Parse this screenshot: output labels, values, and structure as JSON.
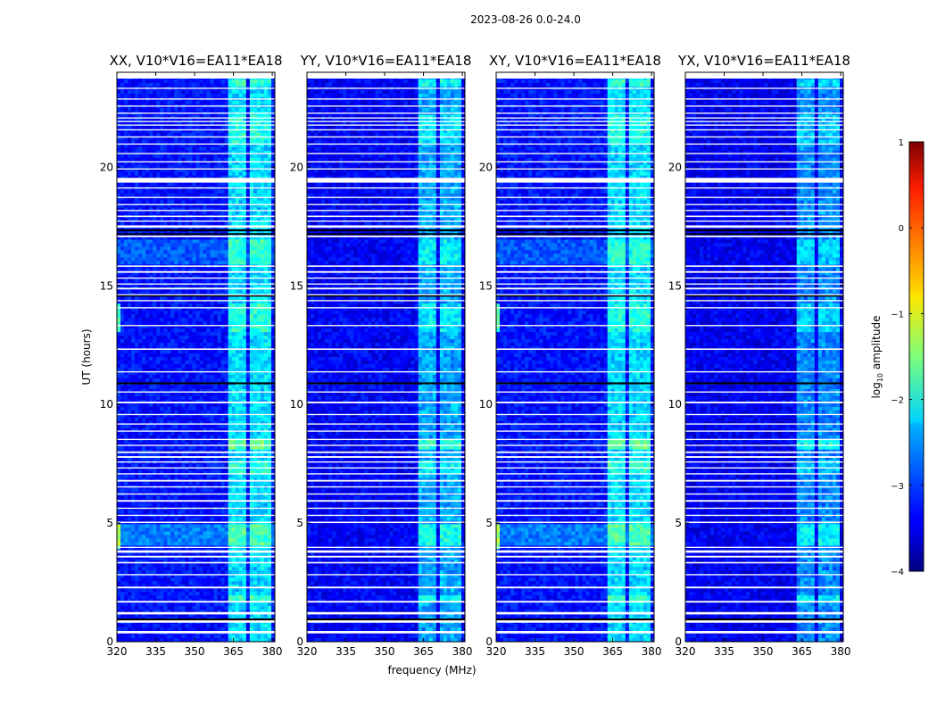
{
  "chart_data": {
    "type": "heatmap",
    "suptitle": "2023-08-26 0.0-24.0",
    "xlabel": "frequency (MHz)",
    "ylabel": "UT (hours)",
    "xlim": [
      320,
      381
    ],
    "ylim": [
      0,
      24
    ],
    "x_ticks": [
      320,
      335,
      350,
      365,
      380
    ],
    "y_ticks": [
      0,
      5,
      10,
      15,
      20
    ],
    "colorbar": {
      "label": "log10 amplitude",
      "label_base": "log",
      "label_sub": "10",
      "label_rest": " amplitude",
      "range": [
        -4,
        1
      ],
      "ticks": [
        1,
        0,
        -1,
        -2,
        -3,
        -4
      ],
      "tick_labels": [
        "1",
        "0",
        "−1",
        "−2",
        "−3",
        "−4"
      ],
      "colormap": "jet"
    },
    "rfi_bands_mhz": [
      [
        363.5,
        367
      ],
      [
        367.5,
        370
      ],
      [
        371,
        373.5
      ],
      [
        374.5,
        376.5
      ],
      [
        377,
        380
      ]
    ],
    "panels": [
      {
        "title": "XX, V10*V16=EA11*EA18",
        "pol": "XX",
        "base_level": -3.3,
        "band_boost": 0.85,
        "strong_edge": true
      },
      {
        "title": "YY, V10*V16=EA11*EA18",
        "pol": "YY",
        "base_level": -3.4,
        "band_boost": 0.7,
        "strong_edge": false
      },
      {
        "title": "XY, V10*V16=EA11*EA18",
        "pol": "XY",
        "base_level": -3.3,
        "band_boost": 0.85,
        "strong_edge": true
      },
      {
        "title": "YX, V10*V16=EA11*EA18",
        "pol": "YX",
        "base_level": -3.45,
        "band_boost": 0.6,
        "strong_edge": false
      }
    ],
    "flagged_hours": [
      [
        0.35,
        0.45
      ],
      [
        0.8,
        0.95
      ],
      [
        1.15,
        1.25
      ],
      [
        1.65,
        1.72
      ],
      [
        2.25,
        2.32
      ],
      [
        2.8,
        2.85
      ],
      [
        3.3,
        3.36
      ],
      [
        3.55,
        3.62
      ],
      [
        3.75,
        3.85
      ],
      [
        3.95,
        4.0
      ],
      [
        5.0,
        5.06
      ],
      [
        5.3,
        5.35
      ],
      [
        5.6,
        5.65
      ],
      [
        5.9,
        5.97
      ],
      [
        6.2,
        6.25
      ],
      [
        6.5,
        6.55
      ],
      [
        6.75,
        6.82
      ],
      [
        7.05,
        7.1
      ],
      [
        7.3,
        7.35
      ],
      [
        7.55,
        7.6
      ],
      [
        7.75,
        7.82
      ],
      [
        7.95,
        8.02
      ],
      [
        8.25,
        8.3
      ],
      [
        8.5,
        8.55
      ],
      [
        8.85,
        8.9
      ],
      [
        9.15,
        9.2
      ],
      [
        9.55,
        9.6
      ],
      [
        10.05,
        10.12
      ],
      [
        10.5,
        10.55
      ],
      [
        10.85,
        10.9
      ],
      [
        11.35,
        11.4
      ],
      [
        12.3,
        12.36
      ],
      [
        13.3,
        13.35
      ],
      [
        14.05,
        14.1
      ],
      [
        14.35,
        14.4
      ],
      [
        14.6,
        14.65
      ],
      [
        14.85,
        14.92
      ],
      [
        15.05,
        15.1
      ],
      [
        15.3,
        15.35
      ],
      [
        15.55,
        15.62
      ],
      [
        15.8,
        15.86
      ],
      [
        17.05,
        17.12
      ],
      [
        17.45,
        17.55
      ],
      [
        17.7,
        17.75
      ],
      [
        17.9,
        17.96
      ],
      [
        18.15,
        18.2
      ],
      [
        18.4,
        18.45
      ],
      [
        18.7,
        18.75
      ],
      [
        19.1,
        19.15
      ],
      [
        19.35,
        19.55
      ],
      [
        19.9,
        19.95
      ],
      [
        20.2,
        20.25
      ],
      [
        20.55,
        20.6
      ],
      [
        20.95,
        21.0
      ],
      [
        21.25,
        21.3
      ],
      [
        21.55,
        21.6
      ],
      [
        21.75,
        21.8
      ],
      [
        21.9,
        21.95
      ],
      [
        22.05,
        22.1
      ],
      [
        22.25,
        22.3
      ],
      [
        22.55,
        22.6
      ],
      [
        22.85,
        22.9
      ],
      [
        23.3,
        23.35
      ]
    ],
    "no_data_hours": [
      [
        0.9,
        0.98
      ],
      [
        10.85,
        10.93
      ],
      [
        14.55,
        14.6
      ],
      [
        17.15,
        17.22
      ],
      [
        17.3,
        17.38
      ]
    ],
    "bright_time_bands": [
      {
        "hours": [
          4.0,
          4.9
        ],
        "boost": 0.9
      },
      {
        "hours": [
          13.0,
          14.2
        ],
        "boost": 0.55
      },
      {
        "hours": [
          15.9,
          16.9
        ],
        "boost": 0.6
      },
      {
        "hours": [
          8.1,
          8.5
        ],
        "boost": 1.1
      },
      {
        "hours": [
          7.0,
          7.6
        ],
        "boost": 0.6
      },
      {
        "hours": [
          1.6,
          1.9
        ],
        "boost": 0.8
      },
      {
        "hours": [
          21.0,
          22.2
        ],
        "boost": 0.5
      },
      {
        "hours": [
          23.4,
          23.75
        ],
        "boost": 0.7
      }
    ]
  }
}
